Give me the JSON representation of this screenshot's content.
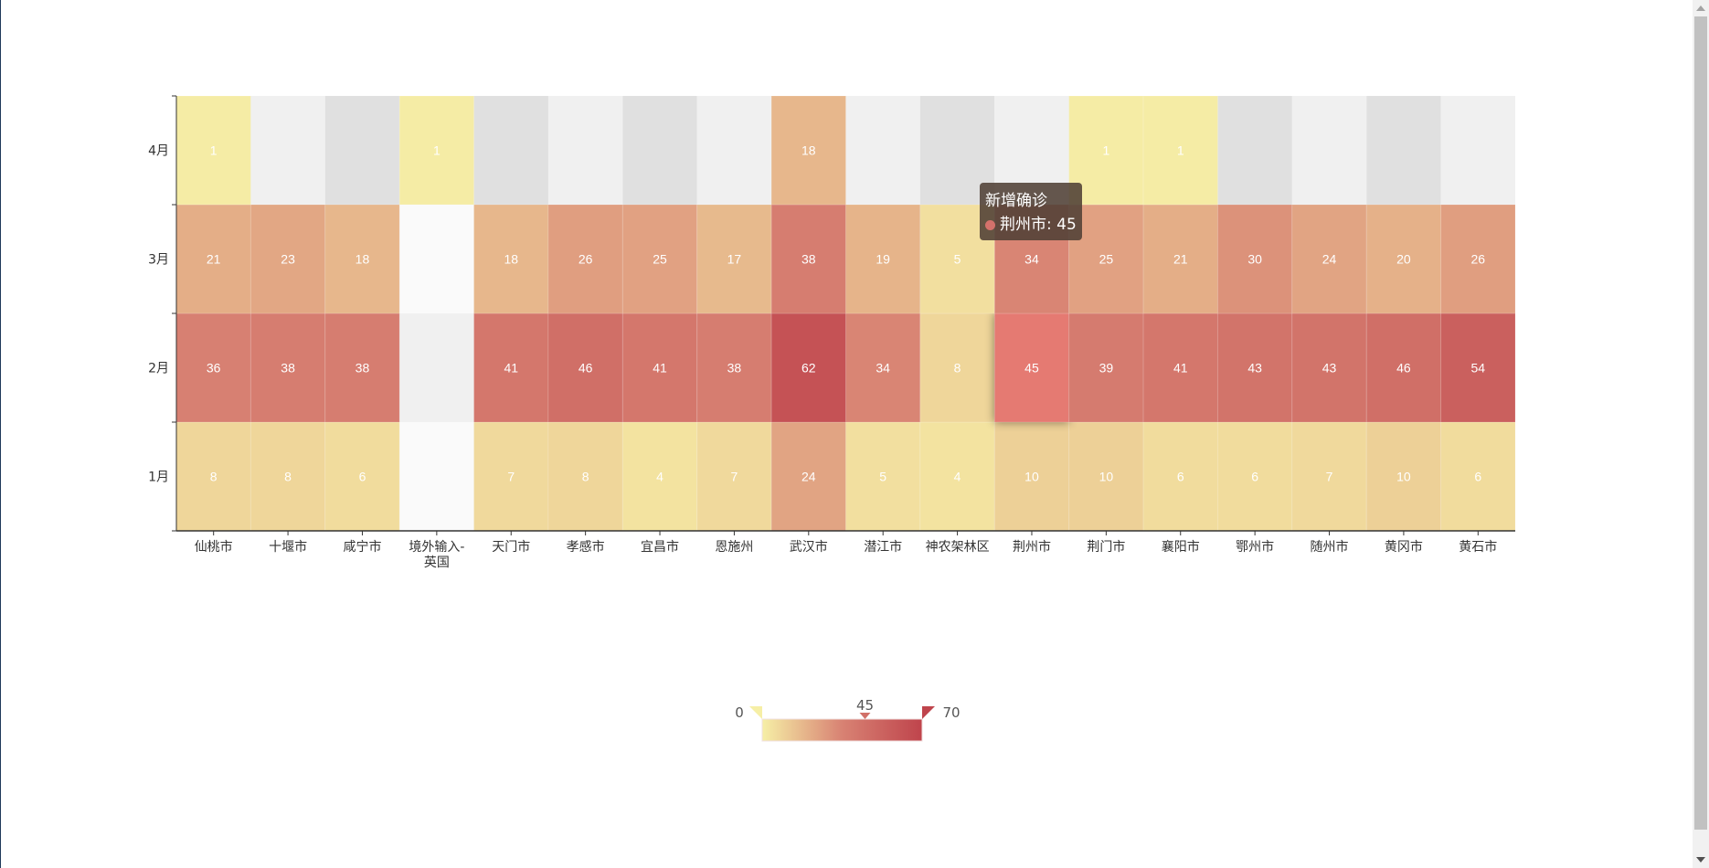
{
  "chart_data": {
    "type": "heatmap",
    "x_categories": [
      "仙桃市",
      "十堰市",
      "咸宁市",
      "境外输入-英国",
      "天门市",
      "孝感市",
      "宜昌市",
      "恩施州",
      "武汉市",
      "潜江市",
      "神农架林区",
      "荆州市",
      "荆门市",
      "襄阳市",
      "鄂州市",
      "随州市",
      "黄冈市",
      "黄石市"
    ],
    "y_categories": [
      "1月",
      "2月",
      "3月",
      "4月"
    ],
    "values": {
      "1月": [
        8,
        8,
        6,
        null,
        7,
        8,
        4,
        7,
        24,
        5,
        4,
        10,
        10,
        6,
        6,
        7,
        10,
        6
      ],
      "2月": [
        36,
        38,
        38,
        null,
        41,
        46,
        41,
        38,
        62,
        34,
        8,
        45,
        39,
        41,
        43,
        43,
        46,
        54
      ],
      "3月": [
        21,
        23,
        18,
        null,
        18,
        26,
        25,
        17,
        38,
        19,
        5,
        34,
        25,
        21,
        30,
        24,
        20,
        26
      ],
      "4月": [
        1,
        null,
        null,
        1,
        null,
        null,
        null,
        null,
        18,
        null,
        null,
        null,
        1,
        1,
        null,
        null,
        null,
        null
      ]
    },
    "series_name": "新增确诊",
    "visual_map": {
      "min": 0,
      "max": 70,
      "min_label": "0",
      "max_label": "70",
      "indicator_value": "45",
      "colors": [
        "#f6efa6",
        "#d88273",
        "#bf444c"
      ]
    },
    "highlight": {
      "x": "荆州市",
      "y": "2月",
      "color": "#e57a72"
    },
    "tooltip": {
      "title": "新增确诊",
      "label": "荆州市: 45",
      "marker_color": "#d4716b"
    }
  }
}
